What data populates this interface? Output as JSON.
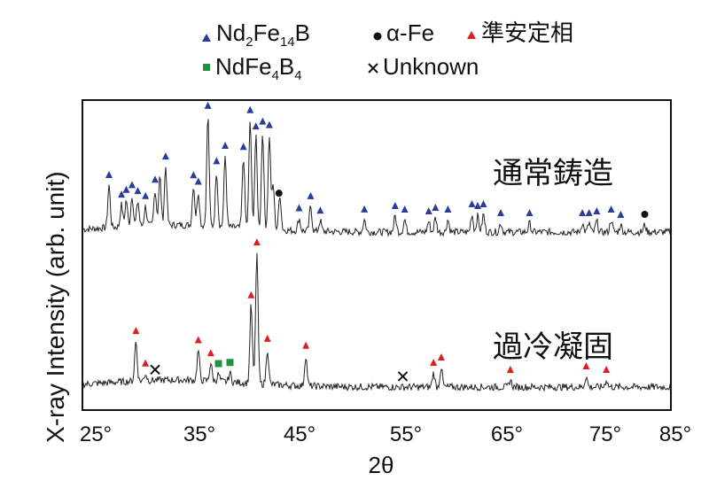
{
  "chart_data": {
    "type": "line",
    "xlabel": "2θ",
    "ylabel": "X-ray Intensity (arb. unit)",
    "xlim": [
      25,
      85
    ],
    "x_ticks": [
      "25°",
      "35°",
      "45°",
      "55°",
      "65°",
      "75°",
      "85°"
    ],
    "legend": {
      "placement": "top",
      "entries": [
        {
          "marker": "triangle",
          "color": "#2b3d9c",
          "main": "Nd",
          "sub1": "2",
          "mid": "Fe",
          "sub2": "14",
          "end": "B"
        },
        {
          "marker": "dot",
          "color": "#111111",
          "text": "α-Fe"
        },
        {
          "marker": "triangle",
          "color": "#e01e1e",
          "text": "準安定相"
        },
        {
          "marker": "square",
          "color": "#1e9440",
          "main": "NdFe",
          "sub1": "4",
          "mid": "B",
          "sub2": "4",
          "end": ""
        },
        {
          "marker": "cross",
          "color": "#111111",
          "text": "Unknown"
        }
      ]
    },
    "series": [
      {
        "name": "通常鋳造",
        "peaks": [
          {
            "x": 26.2,
            "h": 48
          },
          {
            "x": 27.5,
            "h": 25
          },
          {
            "x": 28.0,
            "h": 30
          },
          {
            "x": 28.6,
            "h": 35
          },
          {
            "x": 29.2,
            "h": 28
          },
          {
            "x": 30.0,
            "h": 22
          },
          {
            "x": 31.0,
            "h": 40
          },
          {
            "x": 31.5,
            "h": 55
          },
          {
            "x": 32.1,
            "h": 66
          },
          {
            "x": 35.0,
            "h": 45
          },
          {
            "x": 35.5,
            "h": 38
          },
          {
            "x": 36.5,
            "h": 124
          },
          {
            "x": 37.4,
            "h": 62
          },
          {
            "x": 38.3,
            "h": 80
          },
          {
            "x": 40.2,
            "h": 80
          },
          {
            "x": 40.9,
            "h": 122
          },
          {
            "x": 41.5,
            "h": 104
          },
          {
            "x": 42.2,
            "h": 110
          },
          {
            "x": 42.9,
            "h": 106
          },
          {
            "x": 43.3,
            "h": 50
          },
          {
            "x": 44.0,
            "h": 40
          },
          {
            "x": 46.0,
            "h": 14
          },
          {
            "x": 47.2,
            "h": 28
          },
          {
            "x": 48.2,
            "h": 12
          },
          {
            "x": 52.8,
            "h": 14
          },
          {
            "x": 56.0,
            "h": 18
          },
          {
            "x": 57.0,
            "h": 14
          },
          {
            "x": 59.5,
            "h": 12
          },
          {
            "x": 60.2,
            "h": 16
          },
          {
            "x": 61.5,
            "h": 14
          },
          {
            "x": 64.0,
            "h": 20
          },
          {
            "x": 64.6,
            "h": 18
          },
          {
            "x": 65.2,
            "h": 20
          },
          {
            "x": 67.0,
            "h": 10
          },
          {
            "x": 70.0,
            "h": 10
          },
          {
            "x": 75.5,
            "h": 10
          },
          {
            "x": 76.2,
            "h": 10
          },
          {
            "x": 77.0,
            "h": 12
          },
          {
            "x": 78.5,
            "h": 14
          },
          {
            "x": 79.5,
            "h": 8
          },
          {
            "x": 82.0,
            "h": 8
          }
        ],
        "markers": [
          {
            "type": "triangle",
            "color": "#2b3d9c",
            "x": [
              26.2,
              27.5,
              28.0,
              28.6,
              29.2,
              30.0,
              31.0,
              32.1,
              35.0,
              35.5,
              36.5,
              37.4,
              38.3,
              40.2,
              40.9,
              41.5,
              42.2,
              42.9,
              46.0,
              47.2,
              48.2,
              52.8,
              56.0,
              57.0,
              59.5,
              60.2,
              61.5,
              64.0,
              64.6,
              65.2,
              67.0,
              70.0,
              75.5,
              76.2,
              77.0,
              78.5,
              79.5
            ]
          },
          {
            "type": "dot",
            "color": "#111111",
            "x": [
              43.9,
              82.0
            ]
          }
        ]
      },
      {
        "name": "過冷凝固",
        "peaks": [
          {
            "x": 29.0,
            "h": 45
          },
          {
            "x": 30.0,
            "h": 8
          },
          {
            "x": 35.5,
            "h": 34
          },
          {
            "x": 36.8,
            "h": 20
          },
          {
            "x": 37.6,
            "h": 8
          },
          {
            "x": 38.8,
            "h": 10
          },
          {
            "x": 41.0,
            "h": 88
          },
          {
            "x": 41.6,
            "h": 148
          },
          {
            "x": 42.7,
            "h": 40
          },
          {
            "x": 46.7,
            "h": 34
          },
          {
            "x": 60.0,
            "h": 16
          },
          {
            "x": 60.8,
            "h": 22
          },
          {
            "x": 68.0,
            "h": 8
          },
          {
            "x": 75.9,
            "h": 12
          },
          {
            "x": 78.0,
            "h": 8
          }
        ],
        "markers": [
          {
            "type": "triangle",
            "color": "#e01e1e",
            "x": [
              29.0,
              30.0,
              35.5,
              36.8,
              41.0,
              41.6,
              42.7,
              46.7,
              60.0,
              60.8,
              68.0,
              75.9,
              78.0
            ]
          },
          {
            "type": "square",
            "color": "#1e9440",
            "x": [
              37.6,
              38.8
            ]
          },
          {
            "type": "cross",
            "color": "#111111",
            "x": [
              31.0,
              56.8
            ]
          }
        ]
      }
    ]
  }
}
